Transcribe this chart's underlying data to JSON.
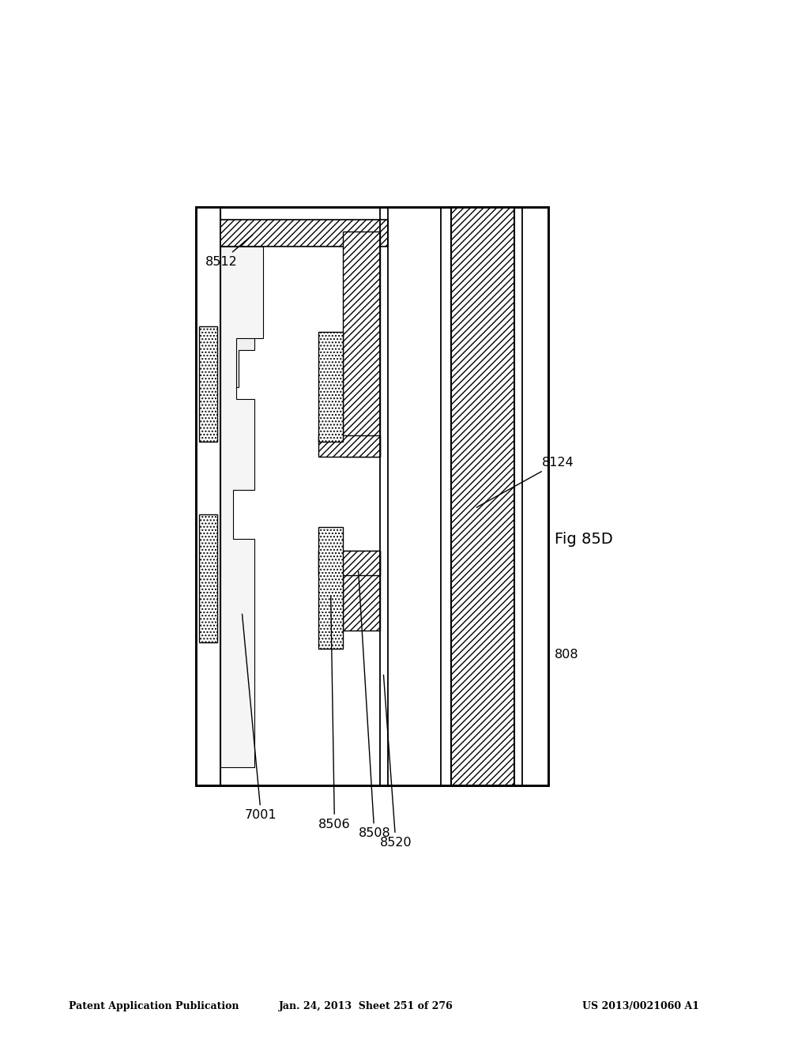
{
  "header_left": "Patent Application Publication",
  "header_mid": "Jan. 24, 2013  Sheet 251 of 276",
  "header_right": "US 2013/0021060 A1",
  "fig_label": "Fig 85D",
  "bg": "#ffffff"
}
